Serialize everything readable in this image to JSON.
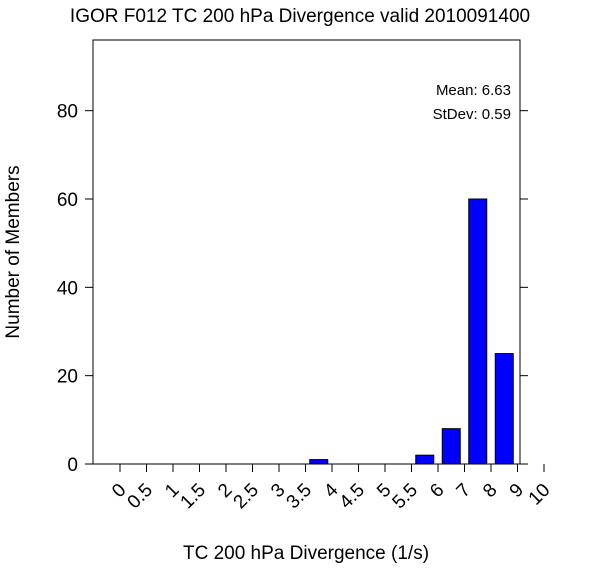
{
  "chart_data": {
    "type": "bar",
    "title": "IGOR F012 TC 200 hPa Divergence valid 2010091400",
    "xlabel": "TC 200 hPa Divergence (1/s)",
    "ylabel": "Number of Members",
    "categories": [
      "0",
      "0.5",
      "1",
      "1.5",
      "2",
      "2.5",
      "3",
      "3.5",
      "4",
      "4.5",
      "5",
      "5.5",
      "6",
      "7",
      "8",
      "9",
      "10"
    ],
    "values": [
      0,
      0,
      0,
      0,
      0,
      0,
      0,
      1,
      0,
      0,
      0,
      2,
      8,
      60,
      25,
      0,
      0
    ],
    "yticks": [
      "0",
      "20",
      "40",
      "60",
      "80"
    ],
    "ylim": [
      0,
      96
    ],
    "bar_color": "#0000ff",
    "stats": {
      "mean": "Mean: 6.63",
      "stdev": "StDev: 0.59"
    },
    "grid": false,
    "legend": "none"
  }
}
